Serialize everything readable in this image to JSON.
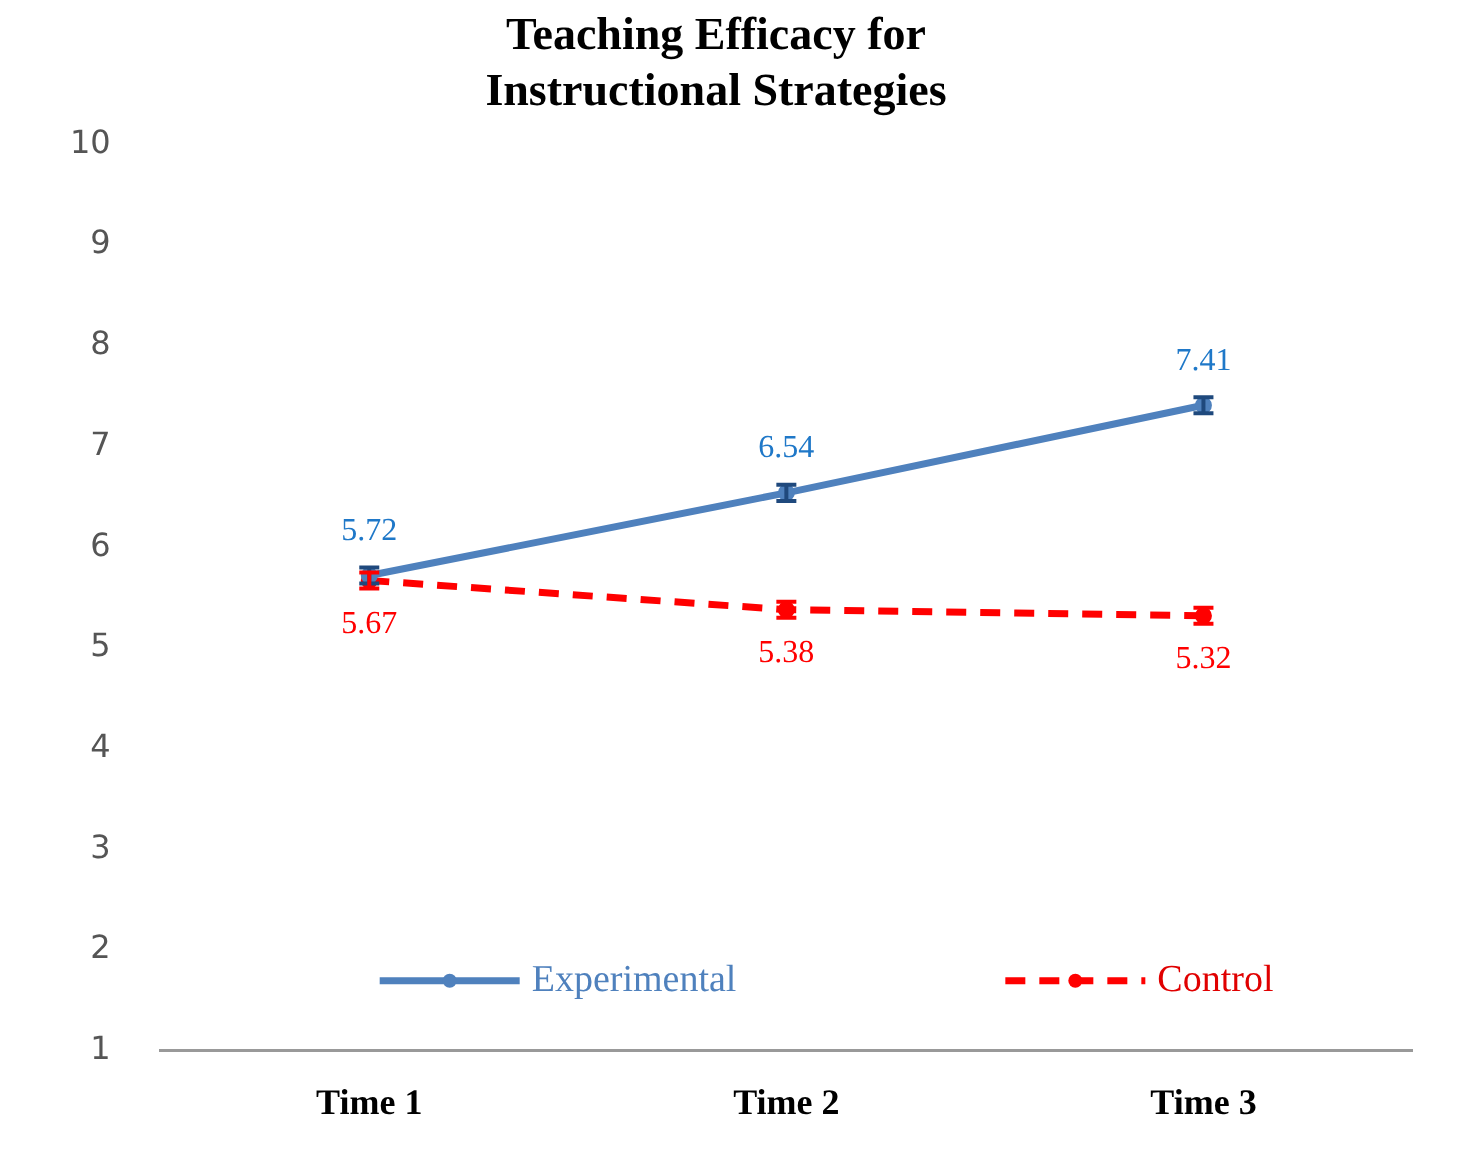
{
  "chart_data": {
    "type": "line",
    "title": "Teaching Efficacy for\nInstructional Strategies",
    "categories": [
      "Time 1",
      "Time 2",
      "Time 3"
    ],
    "series": [
      {
        "name": "Experimental",
        "color": "#4f81bd",
        "values": [
          5.72,
          6.54,
          7.41
        ],
        "errors": [
          0.08,
          0.08,
          0.08
        ],
        "line_style": "solid",
        "marker": "circle"
      },
      {
        "name": "Control",
        "color": "#ff0000",
        "values": [
          5.67,
          5.38,
          5.32
        ],
        "errors": [
          0.08,
          0.08,
          0.08
        ],
        "line_style": "dashed",
        "marker": "circle"
      }
    ],
    "ylim": [
      1,
      10
    ],
    "yticks": [
      1,
      2,
      3,
      4,
      5,
      6,
      7,
      8,
      9,
      10
    ],
    "grid": false,
    "legend": "bottom",
    "data_labels": true
  }
}
